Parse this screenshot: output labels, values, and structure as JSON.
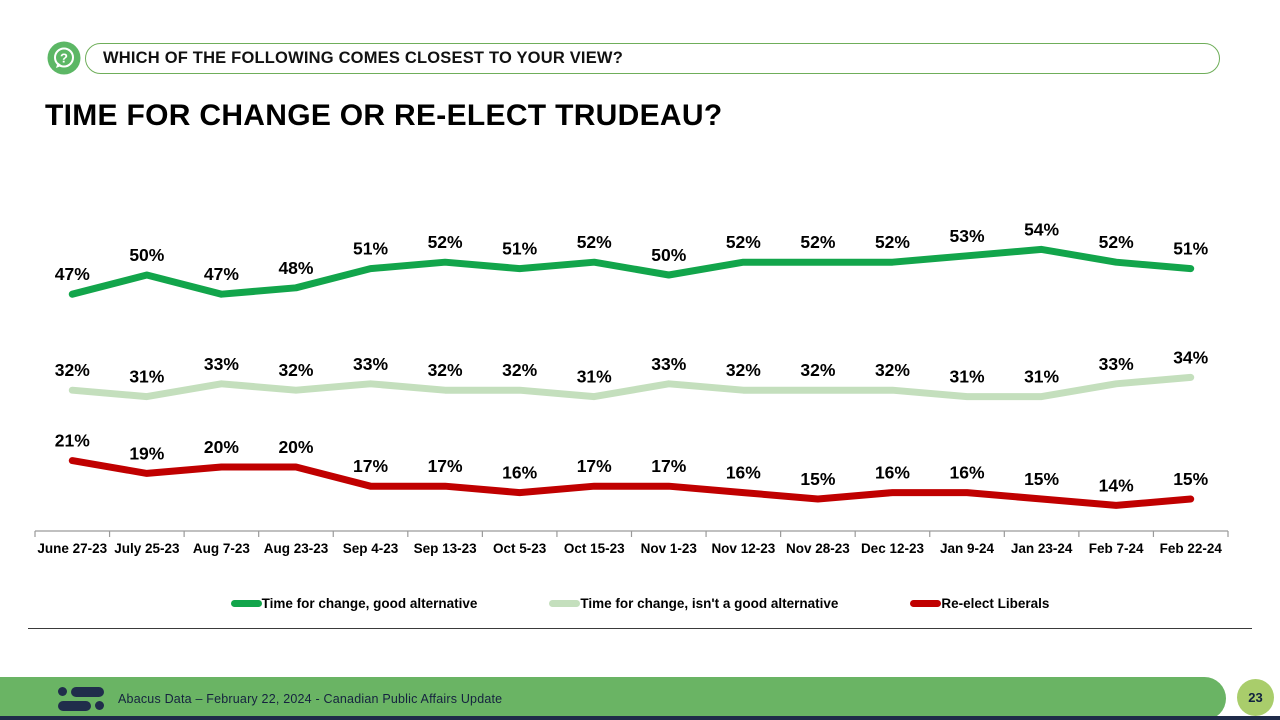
{
  "header": {
    "question": "WHICH OF THE FOLLOWING COMES CLOSEST TO YOUR VIEW?"
  },
  "title": "TIME FOR CHANGE OR RE-ELECT TRUDEAU?",
  "chart_data": {
    "type": "line",
    "title": "Time for change or re-elect Trudeau?",
    "categories": [
      "June 27-23",
      "July 25-23",
      "Aug 7-23",
      "Aug 23-23",
      "Sep 4-23",
      "Sep 13-23",
      "Oct 5-23",
      "Oct 15-23",
      "Nov 1-23",
      "Nov 12-23",
      "Nov 28-23",
      "Dec 12-23",
      "Jan 9-24",
      "Jan 23-24",
      "Feb 7-24",
      "Feb 22-24"
    ],
    "series": [
      {
        "name": "Time for change, good alternative",
        "color": "#12a54b",
        "values": [
          47,
          50,
          47,
          48,
          51,
          52,
          51,
          52,
          50,
          52,
          52,
          52,
          53,
          54,
          52,
          51
        ]
      },
      {
        "name": "Time for change, isn't a good alternative",
        "color": "#c4dfbd",
        "values": [
          32,
          31,
          33,
          32,
          33,
          32,
          32,
          31,
          33,
          32,
          32,
          32,
          31,
          31,
          33,
          34
        ]
      },
      {
        "name": "Re-elect Liberals",
        "color": "#c00000",
        "values": [
          21,
          19,
          20,
          20,
          17,
          17,
          16,
          17,
          17,
          16,
          15,
          16,
          16,
          15,
          14,
          15
        ]
      }
    ],
    "data_labels": "percent",
    "xlabel": "",
    "ylabel": "",
    "ylim": [
      10,
      60
    ],
    "grid": false,
    "legend_position": "bottom",
    "axis_color": "#9a9a9a"
  },
  "footer": {
    "source": "Abacus Data – February 22, 2024 - Canadian Public Affairs Update",
    "page_number": "23"
  },
  "colors": {
    "icon_green": "#5cb765",
    "banner_border_green": "#6fae5a",
    "footer_green": "#6ab464",
    "page_circle_green": "#a9cd6b",
    "navy": "#202d4b"
  }
}
